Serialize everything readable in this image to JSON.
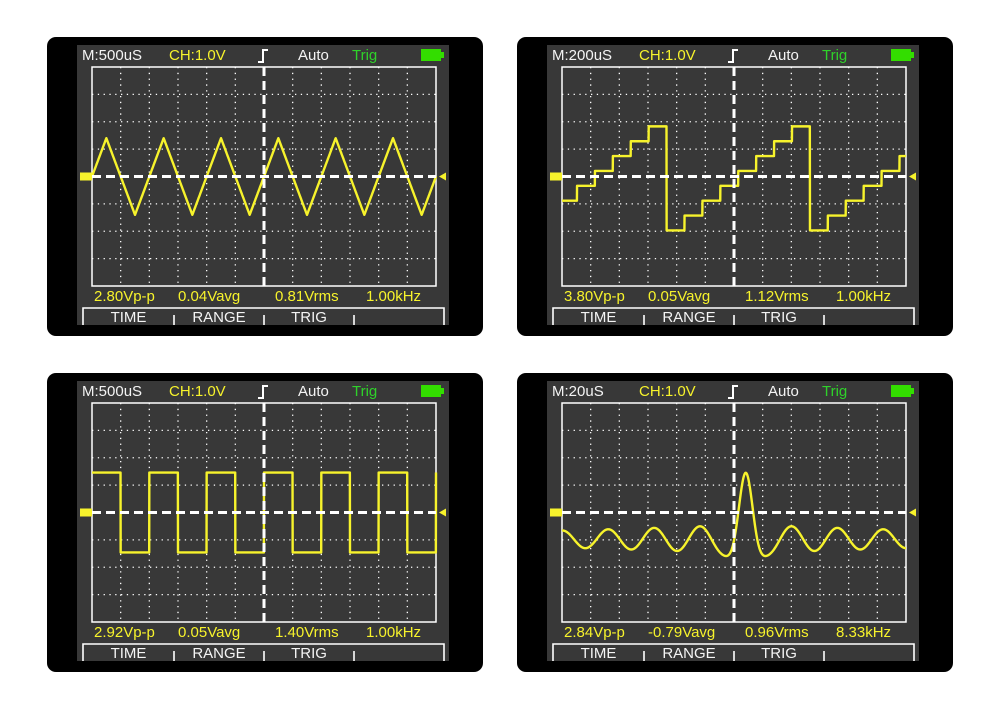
{
  "colors": {
    "trace": "#f7f32c",
    "grid": "#ffffff",
    "screen": "#383838",
    "trig": "#2fd22a",
    "battery": "#33dd00"
  },
  "menu": [
    "TIME",
    "RANGE",
    "TRIG",
    ""
  ],
  "scopes": [
    {
      "header": {
        "timebase": "M:500uS",
        "channel": "CH:1.0V",
        "trigger_edge": "rising-edge-icon",
        "mode": "Auto",
        "trig": "Trig",
        "battery": "battery-full-icon"
      },
      "waveform": "triangle",
      "measurements": {
        "vpp": "2.80Vp-p",
        "vavg": "0.04Vavg",
        "vrms": "0.81Vrms",
        "freq": "1.00kHz"
      }
    },
    {
      "header": {
        "timebase": "M:200uS",
        "channel": "CH:1.0V",
        "trigger_edge": "rising-edge-icon",
        "mode": "Auto",
        "trig": "Trig",
        "battery": "battery-full-icon"
      },
      "waveform": "staircase",
      "measurements": {
        "vpp": "3.80Vp-p",
        "vavg": "0.05Vavg",
        "vrms": "1.12Vrms",
        "freq": "1.00kHz"
      }
    },
    {
      "header": {
        "timebase": "M:500uS",
        "channel": "CH:1.0V",
        "trigger_edge": "rising-edge-icon",
        "mode": "Auto",
        "trig": "Trig",
        "battery": "battery-full-icon"
      },
      "waveform": "square",
      "measurements": {
        "vpp": "2.92Vp-p",
        "vavg": "0.05Vavg",
        "vrms": "1.40Vrms",
        "freq": "1.00kHz"
      }
    },
    {
      "header": {
        "timebase": "M:20uS",
        "channel": "CH:1.0V",
        "trigger_edge": "rising-edge-icon",
        "mode": "Auto",
        "trig": "Trig",
        "battery": "battery-full-icon"
      },
      "waveform": "sinc",
      "measurements": {
        "vpp": "2.84Vp-p",
        "vavg": "-0.79Vavg",
        "vrms": "0.96Vrms",
        "freq": "8.33kHz"
      }
    }
  ]
}
